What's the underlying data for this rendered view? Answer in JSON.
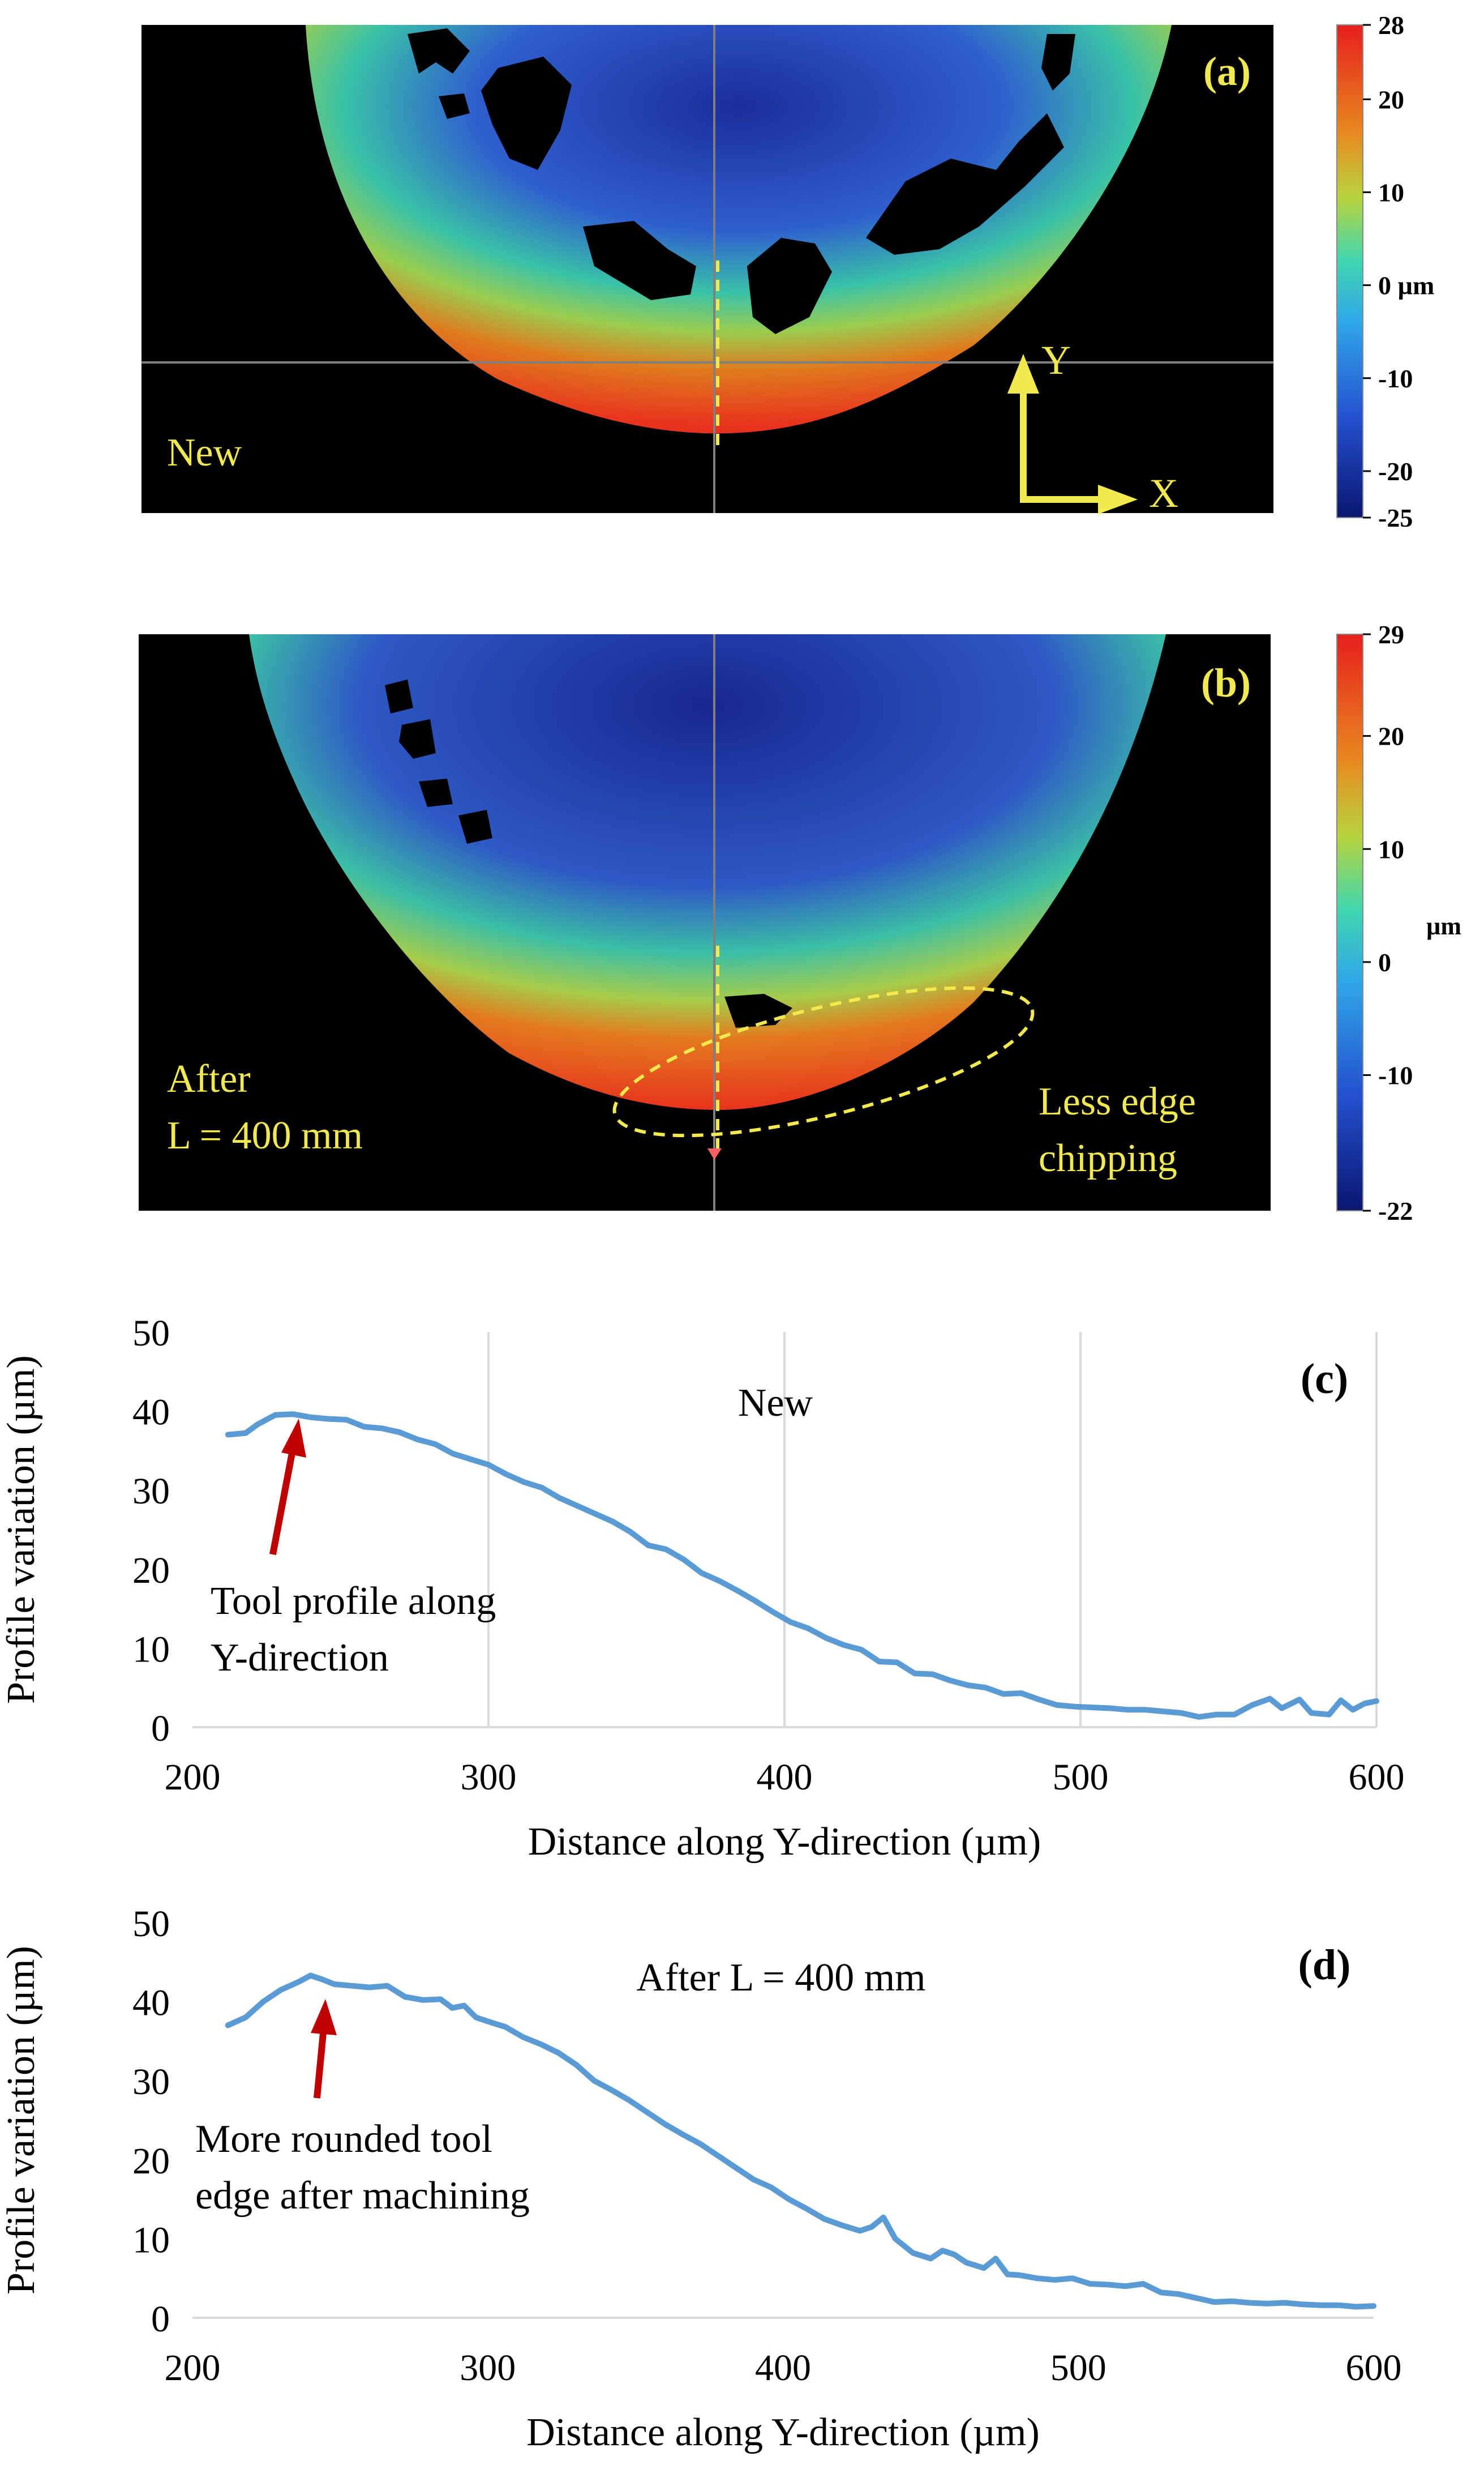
{
  "colors": {
    "annotation_yellow": "#f2e94e",
    "guide_gray": "#7f7f7f",
    "line_blue": "#5b9bd5",
    "arrow_red": "#c00000",
    "gridline": "#d9d9d9",
    "image_bg": "#000000"
  },
  "panel_a": {
    "label": "(a)",
    "state_label": "New",
    "axis_y_label": "Y",
    "axis_x_label": "X",
    "colorbar": {
      "unit": "µm",
      "min": -25,
      "max": 28,
      "ticks": [
        {
          "value": 28,
          "label": "28"
        },
        {
          "value": 20,
          "label": "20"
        },
        {
          "value": 10,
          "label": "10"
        },
        {
          "value": 0,
          "label": "0 µm"
        },
        {
          "value": -10,
          "label": "-10"
        },
        {
          "value": -20,
          "label": "-20"
        },
        {
          "value": -25,
          "label": "-25"
        }
      ]
    }
  },
  "panel_b": {
    "label": "(b)",
    "state_label_line1": "After",
    "state_label_line2": "L = 400  mm",
    "annotation_line1": "Less edge",
    "annotation_line2": "chipping",
    "colorbar": {
      "unit": "µm",
      "min": -22,
      "max": 29,
      "ticks": [
        {
          "value": 29,
          "label": "29"
        },
        {
          "value": 20,
          "label": "20"
        },
        {
          "value": 10,
          "label": "10"
        },
        {
          "value": 0,
          "label": "0"
        },
        {
          "value": -10,
          "label": "-10"
        },
        {
          "value": -22,
          "label": "-22"
        }
      ]
    }
  },
  "chart_data": [
    {
      "type": "line",
      "panel": "(c)",
      "title": "New",
      "xlabel": "Distance along Y-direction  (µm)",
      "ylabel": "Profile  variation  (µm)",
      "xlim": [
        200,
        600
      ],
      "ylim": [
        0,
        50
      ],
      "xticks": [
        200,
        300,
        400,
        500,
        600
      ],
      "yticks": [
        0,
        10,
        20,
        30,
        40,
        50
      ],
      "grid": "vertical",
      "annotation": {
        "line1": "Tool profile  along",
        "line2": "Y-direction",
        "points_to": [
          242,
          39.5
        ]
      },
      "series": [
        {
          "name": "Tool profile along Y-direction",
          "x": [
            212,
            218,
            222,
            228,
            234,
            240,
            246,
            252,
            258,
            264,
            270,
            276,
            282,
            288,
            294,
            300,
            306,
            312,
            318,
            324,
            330,
            336,
            342,
            348,
            354,
            360,
            366,
            372,
            378,
            384,
            390,
            396,
            402,
            408,
            414,
            420,
            426,
            432,
            438,
            444,
            450,
            456,
            462,
            468,
            474,
            480,
            486,
            492,
            498,
            504,
            510,
            516,
            522,
            528,
            534,
            540,
            546,
            552,
            558,
            564,
            568,
            574,
            578,
            584,
            588,
            592,
            596,
            600
          ],
          "y": [
            37.0,
            37.2,
            38.3,
            39.5,
            39.6,
            39.2,
            39.0,
            38.9,
            38.0,
            37.8,
            37.3,
            36.4,
            35.8,
            34.6,
            33.9,
            33.2,
            32.0,
            31.0,
            30.3,
            29.0,
            28.0,
            27.0,
            26.0,
            24.7,
            23.0,
            22.5,
            21.2,
            19.5,
            18.5,
            17.3,
            16.0,
            14.6,
            13.3,
            12.5,
            11.3,
            10.4,
            9.8,
            8.3,
            8.2,
            6.8,
            6.7,
            5.9,
            5.3,
            5.0,
            4.2,
            4.3,
            3.5,
            2.8,
            2.6,
            2.5,
            2.4,
            2.2,
            2.2,
            2.0,
            1.8,
            1.3,
            1.6,
            1.6,
            2.8,
            3.6,
            2.4,
            3.5,
            1.8,
            1.6,
            3.4,
            2.2,
            3.0,
            3.3
          ]
        }
      ]
    },
    {
      "type": "line",
      "panel": "(d)",
      "title": "After L = 400  mm",
      "xlabel": "Distance along Y-direction  (µm)",
      "ylabel": "Profile  variation  (µm)",
      "xlim": [
        200,
        600
      ],
      "ylim": [
        0,
        50
      ],
      "xticks": [
        200,
        300,
        400,
        500,
        600
      ],
      "yticks": [
        0,
        10,
        20,
        30,
        40,
        50
      ],
      "grid": "none",
      "annotation": {
        "line1": "More rounded tool",
        "line2": "edge after machining",
        "points_to": [
          252,
          42.0
        ]
      },
      "series": [
        {
          "name": "Tool profile along Y-direction",
          "x": [
            212,
            218,
            224,
            230,
            236,
            240,
            244,
            248,
            254,
            260,
            266,
            272,
            278,
            284,
            288,
            292,
            296,
            300,
            306,
            312,
            318,
            324,
            330,
            336,
            342,
            348,
            354,
            360,
            366,
            372,
            378,
            384,
            390,
            396,
            402,
            408,
            414,
            420,
            426,
            430,
            434,
            438,
            444,
            450,
            454,
            458,
            462,
            468,
            472,
            476,
            480,
            486,
            492,
            498,
            504,
            510,
            516,
            522,
            528,
            534,
            540,
            546,
            552,
            558,
            564,
            570,
            576,
            582,
            588,
            594,
            600
          ],
          "y": [
            37.0,
            38.0,
            40.0,
            41.5,
            42.5,
            43.3,
            42.8,
            42.2,
            42.0,
            41.8,
            42.0,
            40.6,
            40.2,
            40.3,
            39.2,
            39.5,
            38.0,
            37.5,
            36.8,
            35.5,
            34.6,
            33.5,
            32.0,
            30.0,
            28.8,
            27.5,
            26.0,
            24.5,
            23.2,
            22.0,
            20.5,
            19.0,
            17.5,
            16.5,
            15.0,
            13.8,
            12.5,
            11.7,
            11.0,
            11.5,
            12.7,
            10.0,
            8.2,
            7.5,
            8.5,
            8.0,
            7.0,
            6.3,
            7.5,
            5.5,
            5.4,
            5.0,
            4.8,
            5.0,
            4.3,
            4.2,
            4.0,
            4.3,
            3.2,
            3.0,
            2.5,
            2.0,
            2.1,
            1.9,
            1.8,
            1.9,
            1.7,
            1.6,
            1.6,
            1.4,
            1.5
          ]
        }
      ]
    }
  ]
}
